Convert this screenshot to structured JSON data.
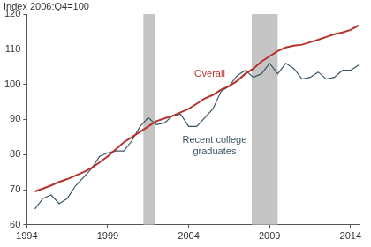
{
  "chart_data": {
    "type": "line",
    "y_label": "Index 2006:Q4=100",
    "x": [
      1994.5,
      1995,
      1995.5,
      1996,
      1996.5,
      1997,
      1997.5,
      1998,
      1998.5,
      1999,
      1999.5,
      2000,
      2000.5,
      2001,
      2001.5,
      2002,
      2002.5,
      2003,
      2003.5,
      2004,
      2004.5,
      2005,
      2005.5,
      2006,
      2006.5,
      2007,
      2007.5,
      2008,
      2008.5,
      2009,
      2009.5,
      2010,
      2010.5,
      2011,
      2011.5,
      2012,
      2012.5,
      2013,
      2013.5,
      2014,
      2014.5
    ],
    "series": [
      {
        "name": "Overall",
        "color": "#b8312b",
        "values": [
          69.5,
          70.3,
          71.2,
          72.2,
          73,
          74,
          75,
          76.2,
          77.8,
          79.5,
          81.5,
          83.5,
          85,
          86.5,
          88,
          89.5,
          90.3,
          91,
          92,
          93,
          94.5,
          96,
          97,
          98.5,
          99.5,
          101,
          103,
          104.5,
          106.5,
          108,
          109.5,
          110.5,
          111,
          111.3,
          112,
          112.7,
          113.5,
          114.3,
          114.8,
          115.5,
          116.8
        ]
      },
      {
        "name": "Recent college graduates",
        "color": "#3b5663",
        "values": [
          64.5,
          67.5,
          68.5,
          66,
          67.5,
          71,
          73.5,
          76,
          79.5,
          80.5,
          81,
          81,
          84,
          88,
          90.5,
          88.5,
          89,
          91,
          91.5,
          88,
          88,
          90.5,
          93,
          98,
          99.5,
          102.5,
          104,
          102,
          103,
          106,
          103,
          106,
          104.5,
          101.5,
          102,
          103.5,
          101.5,
          102,
          104,
          104,
          105.5
        ]
      }
    ],
    "annotations": [
      {
        "text": [
          "Overall"
        ],
        "x": 2005.3,
        "y": 103,
        "color": "#b8312b"
      },
      {
        "text": [
          "Recent college",
          "graduates"
        ],
        "x": 2005.6,
        "y": 84,
        "color": "#3b5663"
      }
    ],
    "shaded_ranges": [
      [
        2001.2,
        2001.9
      ],
      [
        2007.9,
        2009.5
      ]
    ],
    "xlim": [
      1994,
      2014.5
    ],
    "xticks": [
      1994,
      1999,
      2004,
      2009,
      2014
    ],
    "ylim": [
      60,
      120
    ],
    "yticks": [
      60,
      70,
      80,
      90,
      100,
      110,
      120
    ],
    "grid": false,
    "legend": false
  }
}
